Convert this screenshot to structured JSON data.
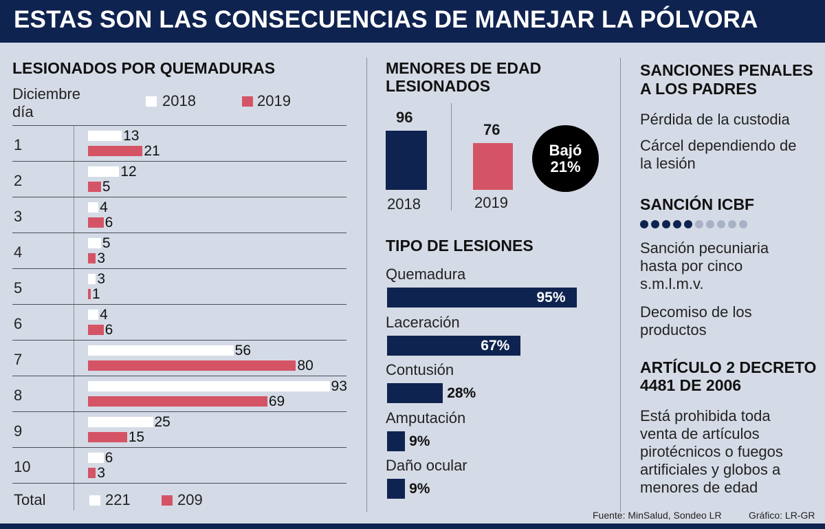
{
  "title": "ESTAS SON LAS CONSECUENCIAS DE MANEJAR LA PÓLVORA",
  "colors": {
    "navy": "#0f2350",
    "red": "#d45466",
    "white": "#ffffff",
    "bg": "#d5dbe6",
    "dot_inactive": "#a9b1c6"
  },
  "chart_data": [
    {
      "type": "bar",
      "orientation": "horizontal",
      "title": "LESIONADOS POR QUEMADURAS",
      "category_header": [
        "Diciembre",
        "día"
      ],
      "categories": [
        "1",
        "2",
        "3",
        "4",
        "5",
        "6",
        "7",
        "8",
        "9",
        "10"
      ],
      "series": [
        {
          "name": "2018",
          "color": "#ffffff",
          "values": [
            13,
            12,
            4,
            5,
            3,
            4,
            56,
            93,
            25,
            6
          ]
        },
        {
          "name": "2019",
          "color": "#d45466",
          "values": [
            21,
            5,
            6,
            3,
            1,
            6,
            80,
            69,
            15,
            3
          ]
        }
      ],
      "total_label": "Total",
      "totals": [
        "221",
        "209"
      ]
    },
    {
      "type": "bar",
      "title_lines": [
        "MENORES DE EDAD",
        "LESIONADOS"
      ],
      "categories": [
        "2018",
        "2019"
      ],
      "values": [
        96,
        76
      ],
      "colors": [
        "#0f2350",
        "#d45466"
      ],
      "badge_lines": [
        "Bajó",
        "21%"
      ]
    },
    {
      "type": "bar",
      "orientation": "horizontal",
      "title": "TIPO DE LESIONES",
      "categories": [
        "Quemadura",
        "Laceración",
        "Contusión",
        "Amputación",
        "Daño ocular"
      ],
      "values": [
        95,
        67,
        28,
        9,
        9
      ],
      "value_labels": [
        "95%",
        "67%",
        "28%",
        "9%",
        "9%"
      ],
      "xlim": [
        0,
        100
      ]
    }
  ],
  "sanciones": {
    "title_lines": [
      "SANCIONES PENALES",
      "A LOS PADRES"
    ],
    "items": [
      [
        "Pérdida de la custodia"
      ],
      [
        "Cárcel dependiendo de",
        "la lesión"
      ]
    ]
  },
  "icbf": {
    "title": "SANCIÓN ICBF",
    "rating": {
      "filled": 5,
      "total": 10
    },
    "items": [
      [
        "Sanción pecuniaria",
        "hasta por cinco",
        "s.m.l.m.v."
      ],
      [
        "Decomiso de los",
        "productos"
      ]
    ]
  },
  "articulo": {
    "title_lines": [
      "ARTÍCULO 2 DECRETO",
      "4481 DE 2006"
    ],
    "text_lines": [
      "Está prohibida toda",
      "venta de artículos",
      "pirotécnicos o fuegos",
      "artificiales y globos a",
      "menores de edad"
    ]
  },
  "footer": {
    "source": "Fuente: MinSalud, Sondeo LR",
    "credit": "Gráfico: LR-GR"
  }
}
